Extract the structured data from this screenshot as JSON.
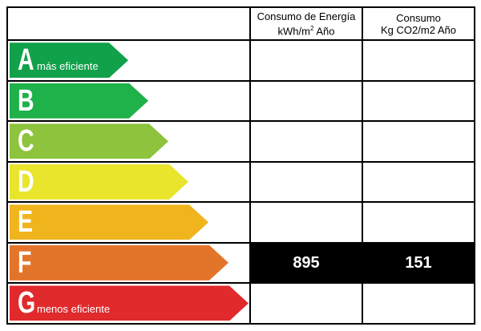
{
  "header": {
    "energy_title": "Consumo de Energía",
    "energy_unit_prefix": "kWh/m",
    "energy_unit_sup": "2",
    "energy_unit_suffix": " Año",
    "co2_title": "Consumo",
    "co2_unit": "Kg CO2/m2 Año"
  },
  "ratings": [
    {
      "letter": "A",
      "desc": "más eficiente",
      "color": "#10a14a"
    },
    {
      "letter": "B",
      "desc": "",
      "color": "#1fb14a"
    },
    {
      "letter": "C",
      "desc": "",
      "color": "#8dc33d"
    },
    {
      "letter": "D",
      "desc": "",
      "color": "#e8e52c"
    },
    {
      "letter": "E",
      "desc": "",
      "color": "#f0b41c"
    },
    {
      "letter": "F",
      "desc": "",
      "color": "#e3752a"
    },
    {
      "letter": "G",
      "desc": "menos eficiente",
      "color": "#e02a2c"
    }
  ],
  "current_rating": {
    "letter": "F",
    "energy_value": "895",
    "co2_value": "151"
  }
}
